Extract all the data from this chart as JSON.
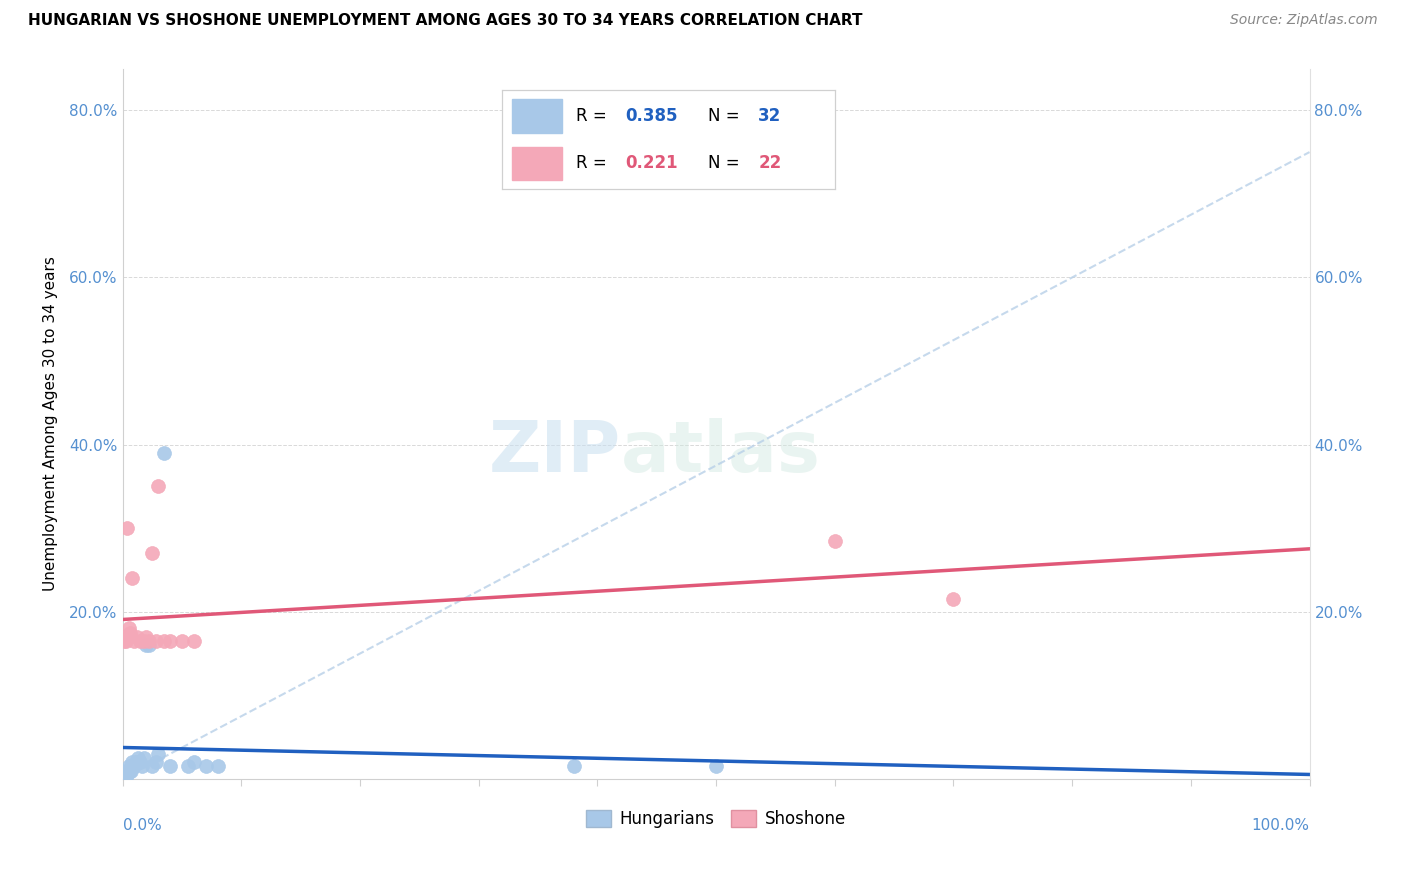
{
  "title": "HUNGARIAN VS SHOSHONE UNEMPLOYMENT AMONG AGES 30 TO 34 YEARS CORRELATION CHART",
  "source": "Source: ZipAtlas.com",
  "ylabel": "Unemployment Among Ages 30 to 34 years",
  "xlim": [
    0,
    1.0
  ],
  "ylim": [
    0,
    0.85
  ],
  "yticks": [
    0.0,
    0.2,
    0.4,
    0.6,
    0.8
  ],
  "ytick_labels": [
    "",
    "20.0%",
    "40.0%",
    "60.0%",
    "80.0%"
  ],
  "hungarian_color": "#a8c8e8",
  "shoshone_color": "#f4a8b8",
  "hungarian_line_color": "#2060c0",
  "shoshone_line_color": "#e05878",
  "watermark_color": "#c8dff0",
  "hungarian_x": [
    0.001,
    0.002,
    0.003,
    0.003,
    0.004,
    0.005,
    0.005,
    0.006,
    0.007,
    0.008,
    0.009,
    0.01,
    0.011,
    0.012,
    0.013,
    0.014,
    0.015,
    0.016,
    0.018,
    0.02,
    0.022,
    0.025,
    0.028,
    0.03,
    0.035,
    0.04,
    0.055,
    0.06,
    0.07,
    0.08,
    0.38,
    0.5
  ],
  "hungarian_y": [
    0.005,
    0.005,
    0.005,
    0.01,
    0.005,
    0.01,
    0.015,
    0.01,
    0.01,
    0.02,
    0.015,
    0.015,
    0.02,
    0.02,
    0.025,
    0.02,
    0.02,
    0.015,
    0.025,
    0.16,
    0.16,
    0.015,
    0.02,
    0.03,
    0.39,
    0.015,
    0.015,
    0.02,
    0.015,
    0.015,
    0.015,
    0.015
  ],
  "shoshone_x": [
    0.001,
    0.002,
    0.003,
    0.004,
    0.005,
    0.006,
    0.008,
    0.01,
    0.012,
    0.015,
    0.018,
    0.02,
    0.022,
    0.025,
    0.028,
    0.03,
    0.035,
    0.04,
    0.05,
    0.06,
    0.6,
    0.7
  ],
  "shoshone_y": [
    0.165,
    0.17,
    0.165,
    0.3,
    0.18,
    0.175,
    0.24,
    0.165,
    0.17,
    0.165,
    0.165,
    0.17,
    0.165,
    0.27,
    0.165,
    0.35,
    0.165,
    0.165,
    0.165,
    0.165,
    0.285,
    0.215
  ]
}
